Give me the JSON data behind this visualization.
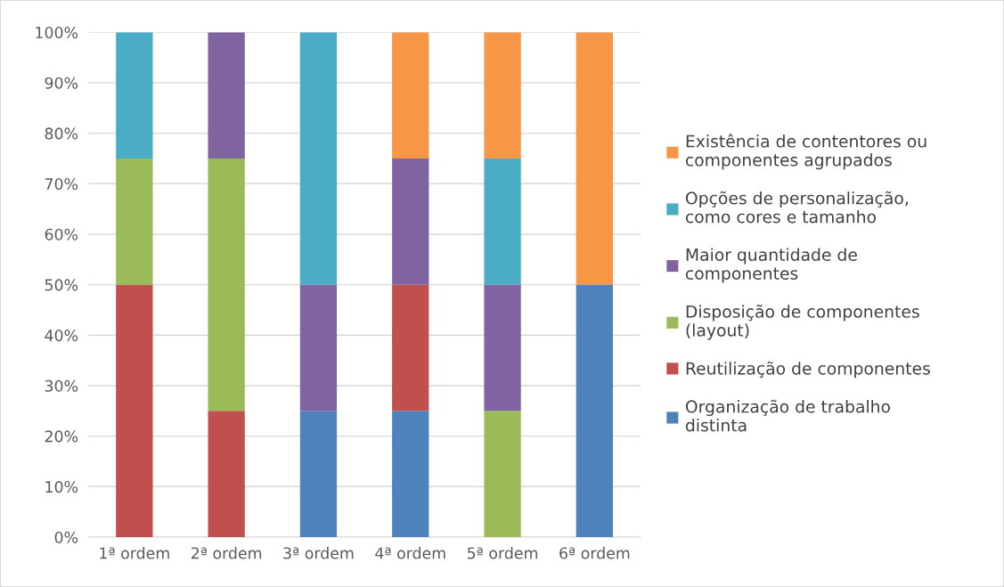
{
  "chart_data": {
    "type": "bar",
    "stacked": true,
    "categories": [
      "1ª ordem",
      "2ª ordem",
      "3ª ordem",
      "4ª ordem",
      "5ª ordem",
      "6ª ordem"
    ],
    "series": [
      {
        "name": "Organização de trabalho\ndistinta",
        "color": "#4f81bd",
        "values": [
          0,
          0,
          25,
          25,
          0,
          50
        ]
      },
      {
        "name": "Reutilização de componentes",
        "color": "#c0504d",
        "values": [
          50,
          25,
          0,
          25,
          0,
          0
        ]
      },
      {
        "name": "Disposição de componentes\n(layout)",
        "color": "#9bbb59",
        "values": [
          25,
          50,
          0,
          0,
          25,
          0
        ]
      },
      {
        "name": "Maior quantidade de\ncomponentes",
        "color": "#8064a2",
        "values": [
          0,
          25,
          25,
          25,
          25,
          0
        ]
      },
      {
        "name": "Opções de personalização,\ncomo cores e tamanho",
        "color": "#4bacc6",
        "values": [
          25,
          0,
          50,
          0,
          25,
          0
        ]
      },
      {
        "name": "Existência de contentores ou\ncomponentes agrupados",
        "color": "#f79646",
        "values": [
          0,
          0,
          0,
          25,
          25,
          50
        ]
      }
    ],
    "ylim": [
      0,
      100
    ],
    "yticks": [
      {
        "value": 0,
        "label": "0%"
      },
      {
        "value": 10,
        "label": "10%"
      },
      {
        "value": 20,
        "label": "20%"
      },
      {
        "value": 30,
        "label": "30%"
      },
      {
        "value": 40,
        "label": "40%"
      },
      {
        "value": 50,
        "label": "50%"
      },
      {
        "value": 60,
        "label": "60%"
      },
      {
        "value": 70,
        "label": "70%"
      },
      {
        "value": 80,
        "label": "80%"
      },
      {
        "value": 90,
        "label": "90%"
      },
      {
        "value": 100,
        "label": "100%"
      }
    ],
    "grid": "y",
    "legend": "right"
  }
}
